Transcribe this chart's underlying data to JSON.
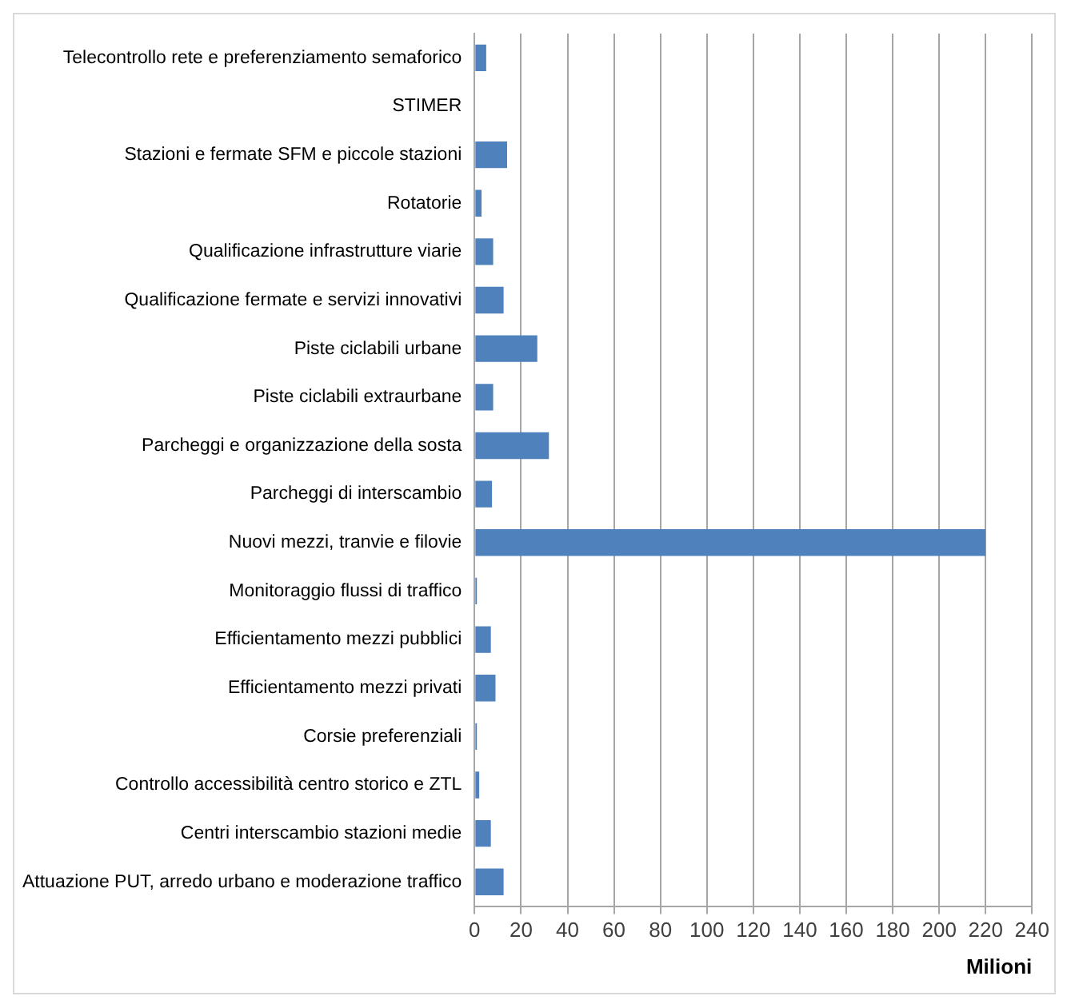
{
  "chart_data": {
    "type": "bar",
    "orientation": "horizontal",
    "xlabel": "Milioni",
    "categories": [
      "Telecontrollo rete e preferenziamento semaforico",
      "STIMER",
      "Stazioni e fermate SFM e piccole stazioni",
      "Rotatorie",
      "Qualificazione infrastrutture viarie",
      "Qualificazione fermate e servizi innovativi",
      "Piste ciclabili urbane",
      "Piste ciclabili extraurbane",
      "Parcheggi e organizzazione della sosta",
      "Parcheggi di interscambio",
      "Nuovi mezzi, tranvie e filovie",
      "Monitoraggio flussi di traffico",
      "Efficientamento mezzi pubblici",
      "Efficientamento mezzi privati",
      "Corsie preferenziali",
      "Controllo accessibilità centro storico e ZTL",
      "Centri interscambio stazioni medie",
      "Attuazione PUT, arredo urbano e moderazione traffico"
    ],
    "values": [
      5,
      0,
      14,
      3,
      8,
      12.5,
      27,
      8,
      32,
      7.5,
      220,
      1,
      7,
      9,
      1,
      2,
      7,
      12.5
    ],
    "color": "#4f81bd",
    "xlim": [
      0,
      240
    ],
    "xticks": [
      0,
      20,
      40,
      60,
      80,
      100,
      120,
      140,
      160,
      180,
      200,
      220,
      240
    ],
    "grid": "x",
    "legend": false
  }
}
